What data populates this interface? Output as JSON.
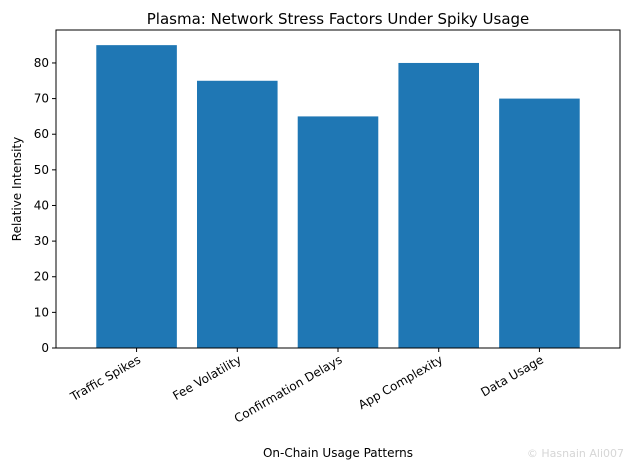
{
  "chart_data": {
    "type": "bar",
    "title": "Plasma: Network Stress Factors Under Spiky Usage",
    "xlabel": "On-Chain Usage Patterns",
    "ylabel": "Relative Intensity",
    "categories": [
      "Traffic Spikes",
      "Fee Volatility",
      "Confirmation Delays",
      "App Complexity",
      "Data Usage"
    ],
    "values": [
      85,
      75,
      65,
      80,
      70
    ],
    "ylim": [
      0,
      89.25
    ],
    "yticks": [
      0,
      10,
      20,
      30,
      40,
      50,
      60,
      70,
      80
    ],
    "bar_color": "#1f77b4",
    "grid": false,
    "legend": "none"
  },
  "watermark": "© Hasnain Ali007"
}
